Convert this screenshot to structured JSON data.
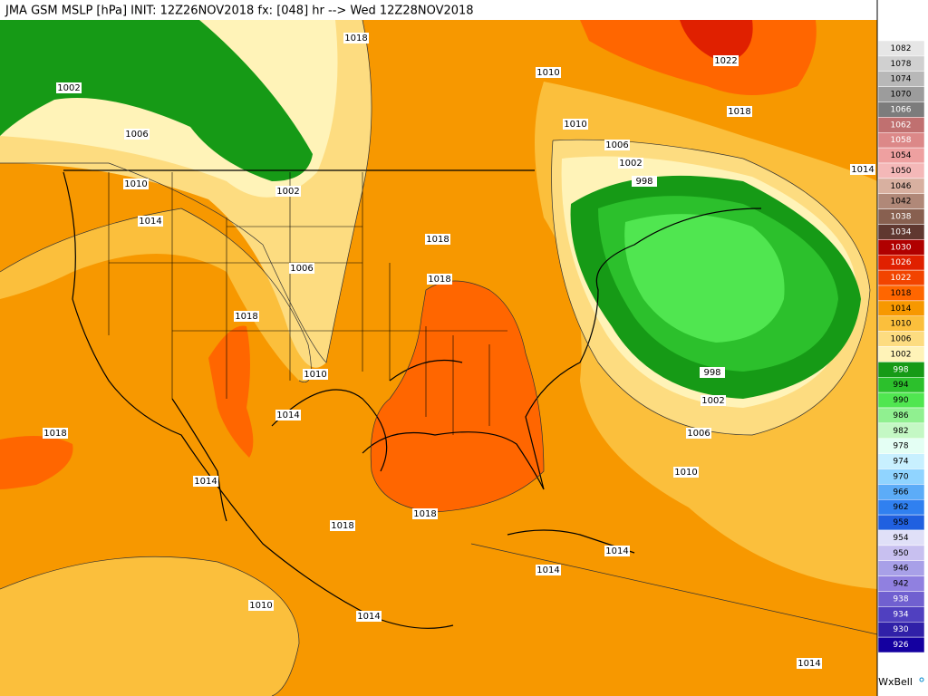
{
  "header": {
    "title": "JMA GSM MSLP [hPa] INIT: 12Z26NOV2018 fx: [048] hr --> Wed 12Z28NOV2018"
  },
  "colorbar": {
    "levels": [
      {
        "value": 1082,
        "color": "#e6e6e6"
      },
      {
        "value": 1078,
        "color": "#d0d0d0"
      },
      {
        "value": 1074,
        "color": "#b8b8b8"
      },
      {
        "value": 1070,
        "color": "#9c9c9c"
      },
      {
        "value": 1066,
        "color": "#7c7c7c"
      },
      {
        "value": 1062,
        "color": "#c07070"
      },
      {
        "value": 1058,
        "color": "#dc8888"
      },
      {
        "value": 1054,
        "color": "#eea0a0"
      },
      {
        "value": 1050,
        "color": "#f4b8b8"
      },
      {
        "value": 1046,
        "color": "#d8b0a0"
      },
      {
        "value": 1042,
        "color": "#b08878"
      },
      {
        "value": 1038,
        "color": "#886050"
      },
      {
        "value": 1034,
        "color": "#603830"
      },
      {
        "value": 1030,
        "color": "#b00000"
      },
      {
        "value": 1026,
        "color": "#e02000"
      },
      {
        "value": 1022,
        "color": "#f24400"
      },
      {
        "value": 1018,
        "color": "#ff6600"
      },
      {
        "value": 1014,
        "color": "#f79800"
      },
      {
        "value": 1010,
        "color": "#fbbf3c"
      },
      {
        "value": 1006,
        "color": "#fddc80"
      },
      {
        "value": 1002,
        "color": "#fff3b8"
      },
      {
        "value": 998,
        "color": "#169a16"
      },
      {
        "value": 994,
        "color": "#2cc02c"
      },
      {
        "value": 990,
        "color": "#50e650"
      },
      {
        "value": 986,
        "color": "#90f090"
      },
      {
        "value": 982,
        "color": "#c4f8c4"
      },
      {
        "value": 978,
        "color": "#e4fff4"
      },
      {
        "value": 974,
        "color": "#c8f0ff"
      },
      {
        "value": 970,
        "color": "#90d4ff"
      },
      {
        "value": 966,
        "color": "#5cacf8"
      },
      {
        "value": 962,
        "color": "#3080f0"
      },
      {
        "value": 958,
        "color": "#2060e0"
      },
      {
        "value": 954,
        "color": "#e0e0f8"
      },
      {
        "value": 950,
        "color": "#c8c0f0"
      },
      {
        "value": 946,
        "color": "#a8a0e8"
      },
      {
        "value": 942,
        "color": "#9080e0"
      },
      {
        "value": 938,
        "color": "#7060d0"
      },
      {
        "value": 934,
        "color": "#5040c0"
      },
      {
        "value": 930,
        "color": "#3020a8"
      },
      {
        "value": 926,
        "color": "#1400a0"
      }
    ]
  },
  "contour_labels": [
    1018,
    1002,
    1006,
    1010,
    1014,
    1002,
    1006,
    1018,
    1018,
    1018,
    1010,
    1014,
    1018,
    1014,
    1018,
    1018,
    1010,
    1014,
    1014,
    1014,
    1010,
    1006,
    1002,
    998,
    998,
    1002,
    1006,
    1010,
    1018,
    1022,
    1014,
    1014,
    1010
  ],
  "credit": "WxBell"
}
